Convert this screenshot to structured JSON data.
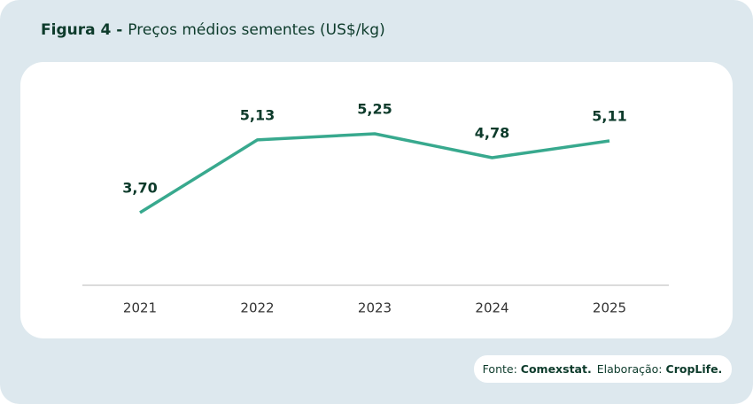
{
  "chart_data": {
    "type": "line",
    "title_label": "Figura 4 -",
    "title": "Preços médios sementes (US$/kg)",
    "categories": [
      "2021",
      "2022",
      "2023",
      "2024",
      "2025"
    ],
    "values": [
      3.7,
      5.13,
      5.25,
      4.78,
      5.11
    ],
    "value_labels": [
      "3,70",
      "5,13",
      "5,25",
      "4,78",
      "5,11"
    ],
    "color": "#38a98e",
    "source": {
      "label": "Fonte:",
      "name": "Comexstat.",
      "credit_label": "Elaboração:",
      "credit": "CropLife."
    }
  }
}
